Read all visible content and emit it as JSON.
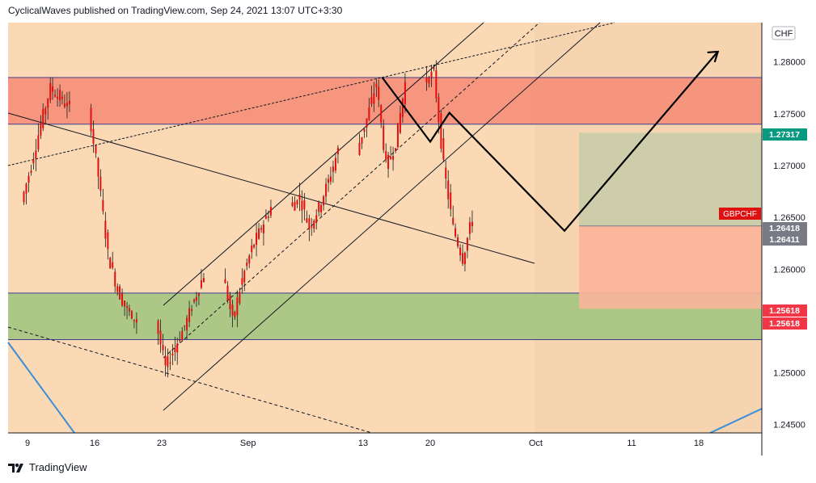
{
  "header": {
    "publisher_line": "CyclicalWaves published on TradingView.com, Sep 24, 2021 13:07 UTC+3:30"
  },
  "footer": {
    "brand": "TradingView",
    "logo_icon": "tradingview-logo-icon"
  },
  "colors": {
    "plot_bg": "#fad9b4",
    "resistance_zone": "#f48a76",
    "support_zone": "#9fc47e",
    "target_box": "#c9ccaa",
    "stop_box": "#f9b49a",
    "candle": "#e01010",
    "wick": "#1a1a1a",
    "symbol_tag": "#e01010",
    "target_tag": "#089981",
    "stop_tag": "#f23645",
    "price_tag": "#787b86",
    "trendline_blue": "#3b8fd9"
  },
  "chart_data": {
    "type": "candlestick",
    "symbol": "GBPCHF",
    "currency": "CHF",
    "x_ticks": [
      "9",
      "16",
      "23",
      "Sep",
      "13",
      "20",
      "Oct",
      "11",
      "18"
    ],
    "y_ticks": [
      "1.28000",
      "1.27500",
      "1.27000",
      "1.26500",
      "1.26000",
      "1.25500",
      "1.25000",
      "1.24500"
    ],
    "ylim": [
      1.2442,
      1.2838
    ],
    "zones": [
      {
        "name": "resistance",
        "low": 1.274,
        "high": 1.2785
      },
      {
        "name": "support",
        "low": 1.2532,
        "high": 1.2577
      }
    ],
    "position": {
      "entry": 1.26418,
      "target": 1.27317,
      "stop": 1.25618
    },
    "price_tags": [
      {
        "label": "GBPCHF",
        "kind": "symbol",
        "value": 1.265
      },
      {
        "label": "1.27317",
        "kind": "target",
        "value": 1.27317
      },
      {
        "label": "1.26418",
        "kind": "price",
        "value": 1.26418
      },
      {
        "label": "1.26411",
        "kind": "price",
        "value": 1.26411
      },
      {
        "label": "1.25618",
        "kind": "stop",
        "value": 1.25618
      },
      {
        "label": "1.25618",
        "kind": "stop",
        "value": 1.25618
      }
    ],
    "projection_path": [
      {
        "date": "2021-09-15",
        "price": 1.2785
      },
      {
        "date": "2021-09-20",
        "price": 1.2723
      },
      {
        "date": "2021-09-22",
        "price": 1.2751
      },
      {
        "date": "2021-10-04",
        "price": 1.2637
      },
      {
        "date": "2021-10-20",
        "price": 1.281
      }
    ],
    "daily_closes": [
      {
        "date": "2021-08-09",
        "close": 1.27
      },
      {
        "date": "2021-08-10",
        "close": 1.274
      },
      {
        "date": "2021-08-11",
        "close": 1.2775
      },
      {
        "date": "2021-08-12",
        "close": 1.2765
      },
      {
        "date": "2021-08-13",
        "close": 1.2755
      },
      {
        "date": "2021-08-16",
        "close": 1.269
      },
      {
        "date": "2021-08-17",
        "close": 1.2615
      },
      {
        "date": "2021-08-18",
        "close": 1.258
      },
      {
        "date": "2021-08-19",
        "close": 1.256
      },
      {
        "date": "2021-08-20",
        "close": 1.255
      },
      {
        "date": "2021-08-23",
        "close": 1.2505
      },
      {
        "date": "2021-08-24",
        "close": 1.2525
      },
      {
        "date": "2021-08-25",
        "close": 1.2545
      },
      {
        "date": "2021-08-26",
        "close": 1.257
      },
      {
        "date": "2021-08-27",
        "close": 1.2595
      },
      {
        "date": "2021-08-30",
        "close": 1.255
      },
      {
        "date": "2021-08-31",
        "close": 1.259
      },
      {
        "date": "2021-09-01",
        "close": 1.262
      },
      {
        "date": "2021-09-02",
        "close": 1.264
      },
      {
        "date": "2021-09-03",
        "close": 1.266
      },
      {
        "date": "2021-09-06",
        "close": 1.267
      },
      {
        "date": "2021-09-07",
        "close": 1.264
      },
      {
        "date": "2021-09-08",
        "close": 1.266
      },
      {
        "date": "2021-09-09",
        "close": 1.2685
      },
      {
        "date": "2021-09-10",
        "close": 1.2715
      },
      {
        "date": "2021-09-13",
        "close": 1.2745
      },
      {
        "date": "2021-09-14",
        "close": 1.278
      },
      {
        "date": "2021-09-15",
        "close": 1.27
      },
      {
        "date": "2021-09-16",
        "close": 1.272
      },
      {
        "date": "2021-09-17",
        "close": 1.278
      },
      {
        "date": "2021-09-20",
        "close": 1.279
      },
      {
        "date": "2021-09-21",
        "close": 1.27
      },
      {
        "date": "2021-09-22",
        "close": 1.264
      },
      {
        "date": "2021-09-23",
        "close": 1.261
      },
      {
        "date": "2021-09-24",
        "close": 1.265
      }
    ]
  }
}
